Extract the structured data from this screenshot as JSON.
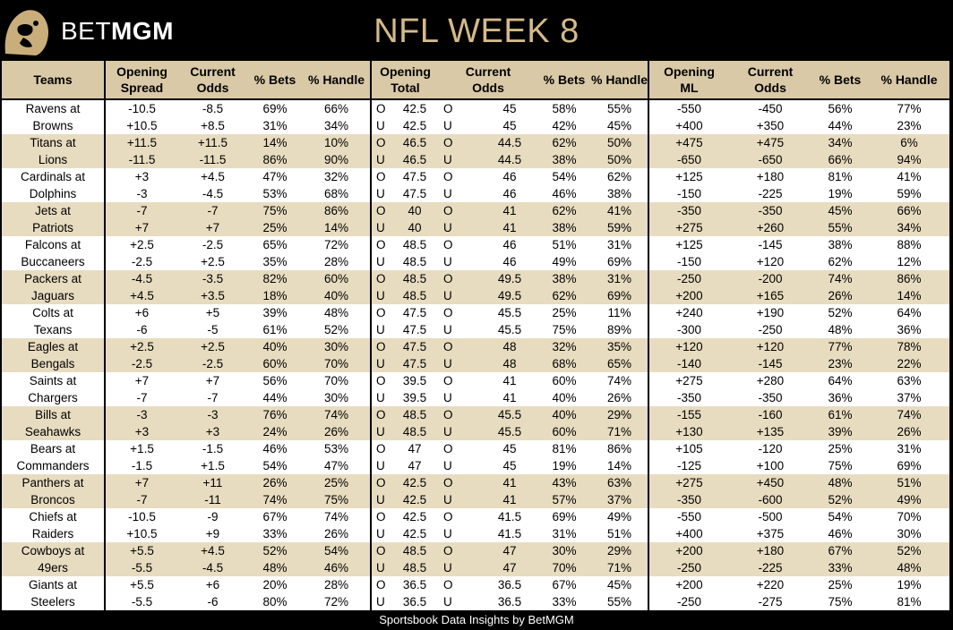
{
  "header": {
    "brand_bet": "BET",
    "brand_mgm": "MGM",
    "title": "NFL WEEK 8"
  },
  "columns": {
    "teams": "Teams",
    "opening_spread": [
      "Opening",
      "Spread"
    ],
    "current_odds_spread": [
      "Current",
      "Odds"
    ],
    "bets_spread": "% Bets",
    "handle_spread": "% Handle",
    "opening_total": [
      "Opening",
      "Total"
    ],
    "current_odds_total": [
      "Current",
      "Odds"
    ],
    "bets_total": "% Bets",
    "handle_total": "% Handle",
    "opening_ml": [
      "Opening",
      "ML"
    ],
    "current_odds_ml": [
      "Current",
      "Odds"
    ],
    "bets_ml": "% Bets",
    "handle_ml": "% Handle"
  },
  "colors": {
    "header_bg": "#d9c9a7",
    "shade_row": "#e8dcc0",
    "gold_title": "#d4b98a"
  },
  "rows": [
    [
      "Ravens at",
      "-10.5",
      "-8.5",
      "69%",
      "66%",
      "O",
      "42.5",
      "O",
      "45",
      "58%",
      "55%",
      "-550",
      "-450",
      "56%",
      "77%"
    ],
    [
      "Browns",
      "+10.5",
      "+8.5",
      "31%",
      "34%",
      "U",
      "42.5",
      "U",
      "45",
      "42%",
      "45%",
      "+400",
      "+350",
      "44%",
      "23%"
    ],
    [
      "Titans at",
      "+11.5",
      "+11.5",
      "14%",
      "10%",
      "O",
      "46.5",
      "O",
      "44.5",
      "62%",
      "50%",
      "+475",
      "+475",
      "34%",
      "6%"
    ],
    [
      "Lions",
      "-11.5",
      "-11.5",
      "86%",
      "90%",
      "U",
      "46.5",
      "U",
      "44.5",
      "38%",
      "50%",
      "-650",
      "-650",
      "66%",
      "94%"
    ],
    [
      "Cardinals at",
      "+3",
      "+4.5",
      "47%",
      "32%",
      "O",
      "47.5",
      "O",
      "46",
      "54%",
      "62%",
      "+125",
      "+180",
      "81%",
      "41%"
    ],
    [
      "Dolphins",
      "-3",
      "-4.5",
      "53%",
      "68%",
      "U",
      "47.5",
      "U",
      "46",
      "46%",
      "38%",
      "-150",
      "-225",
      "19%",
      "59%"
    ],
    [
      "Jets at",
      "-7",
      "-7",
      "75%",
      "86%",
      "O",
      "40",
      "O",
      "41",
      "62%",
      "41%",
      "-350",
      "-350",
      "45%",
      "66%"
    ],
    [
      "Patriots",
      "+7",
      "+7",
      "25%",
      "14%",
      "U",
      "40",
      "U",
      "41",
      "38%",
      "59%",
      "+275",
      "+260",
      "55%",
      "34%"
    ],
    [
      "Falcons at",
      "+2.5",
      "-2.5",
      "65%",
      "72%",
      "O",
      "48.5",
      "O",
      "46",
      "51%",
      "31%",
      "+125",
      "-145",
      "38%",
      "88%"
    ],
    [
      "Buccaneers",
      "-2.5",
      "+2.5",
      "35%",
      "28%",
      "U",
      "48.5",
      "U",
      "46",
      "49%",
      "69%",
      "-150",
      "+120",
      "62%",
      "12%"
    ],
    [
      "Packers at",
      "-4.5",
      "-3.5",
      "82%",
      "60%",
      "O",
      "48.5",
      "O",
      "49.5",
      "38%",
      "31%",
      "-250",
      "-200",
      "74%",
      "86%"
    ],
    [
      "Jaguars",
      "+4.5",
      "+3.5",
      "18%",
      "40%",
      "U",
      "48.5",
      "U",
      "49.5",
      "62%",
      "69%",
      "+200",
      "+165",
      "26%",
      "14%"
    ],
    [
      "Colts at",
      "+6",
      "+5",
      "39%",
      "48%",
      "O",
      "47.5",
      "O",
      "45.5",
      "25%",
      "11%",
      "+240",
      "+190",
      "52%",
      "64%"
    ],
    [
      "Texans",
      "-6",
      "-5",
      "61%",
      "52%",
      "U",
      "47.5",
      "U",
      "45.5",
      "75%",
      "89%",
      "-300",
      "-250",
      "48%",
      "36%"
    ],
    [
      "Eagles at",
      "+2.5",
      "+2.5",
      "40%",
      "30%",
      "O",
      "47.5",
      "O",
      "48",
      "32%",
      "35%",
      "+120",
      "+120",
      "77%",
      "78%"
    ],
    [
      "Bengals",
      "-2.5",
      "-2.5",
      "60%",
      "70%",
      "U",
      "47.5",
      "U",
      "48",
      "68%",
      "65%",
      "-140",
      "-145",
      "23%",
      "22%"
    ],
    [
      "Saints at",
      "+7",
      "+7",
      "56%",
      "70%",
      "O",
      "39.5",
      "O",
      "41",
      "60%",
      "74%",
      "+275",
      "+280",
      "64%",
      "63%"
    ],
    [
      "Chargers",
      "-7",
      "-7",
      "44%",
      "30%",
      "U",
      "39.5",
      "U",
      "41",
      "40%",
      "26%",
      "-350",
      "-350",
      "36%",
      "37%"
    ],
    [
      "Bills at",
      "-3",
      "-3",
      "76%",
      "74%",
      "O",
      "48.5",
      "O",
      "45.5",
      "40%",
      "29%",
      "-155",
      "-160",
      "61%",
      "74%"
    ],
    [
      "Seahawks",
      "+3",
      "+3",
      "24%",
      "26%",
      "U",
      "48.5",
      "U",
      "45.5",
      "60%",
      "71%",
      "+130",
      "+135",
      "39%",
      "26%"
    ],
    [
      "Bears at",
      "+1.5",
      "-1.5",
      "46%",
      "53%",
      "O",
      "47",
      "O",
      "45",
      "81%",
      "86%",
      "+105",
      "-120",
      "25%",
      "31%"
    ],
    [
      "Commanders",
      "-1.5",
      "+1.5",
      "54%",
      "47%",
      "U",
      "47",
      "U",
      "45",
      "19%",
      "14%",
      "-125",
      "+100",
      "75%",
      "69%"
    ],
    [
      "Panthers at",
      "+7",
      "+11",
      "26%",
      "25%",
      "O",
      "42.5",
      "O",
      "41",
      "43%",
      "63%",
      "+275",
      "+450",
      "48%",
      "51%"
    ],
    [
      "Broncos",
      "-7",
      "-11",
      "74%",
      "75%",
      "U",
      "42.5",
      "U",
      "41",
      "57%",
      "37%",
      "-350",
      "-600",
      "52%",
      "49%"
    ],
    [
      "Chiefs at",
      "-10.5",
      "-9",
      "67%",
      "74%",
      "O",
      "42.5",
      "O",
      "41.5",
      "69%",
      "49%",
      "-550",
      "-500",
      "54%",
      "70%"
    ],
    [
      "Raiders",
      "+10.5",
      "+9",
      "33%",
      "26%",
      "U",
      "42.5",
      "U",
      "41.5",
      "31%",
      "51%",
      "+400",
      "+375",
      "46%",
      "30%"
    ],
    [
      "Cowboys at",
      "+5.5",
      "+4.5",
      "52%",
      "54%",
      "O",
      "48.5",
      "O",
      "47",
      "30%",
      "29%",
      "+200",
      "+180",
      "67%",
      "52%"
    ],
    [
      "49ers",
      "-5.5",
      "-4.5",
      "48%",
      "46%",
      "U",
      "48.5",
      "U",
      "47",
      "70%",
      "71%",
      "-250",
      "-225",
      "33%",
      "48%"
    ],
    [
      "Giants at",
      "+5.5",
      "+6",
      "20%",
      "28%",
      "O",
      "36.5",
      "O",
      "36.5",
      "67%",
      "45%",
      "+200",
      "+220",
      "25%",
      "19%"
    ],
    [
      "Steelers",
      "-5.5",
      "-6",
      "80%",
      "72%",
      "U",
      "36.5",
      "U",
      "36.5",
      "33%",
      "55%",
      "-250",
      "-275",
      "75%",
      "81%"
    ]
  ],
  "footer": "Sportsbook Data Insights by BetMGM"
}
